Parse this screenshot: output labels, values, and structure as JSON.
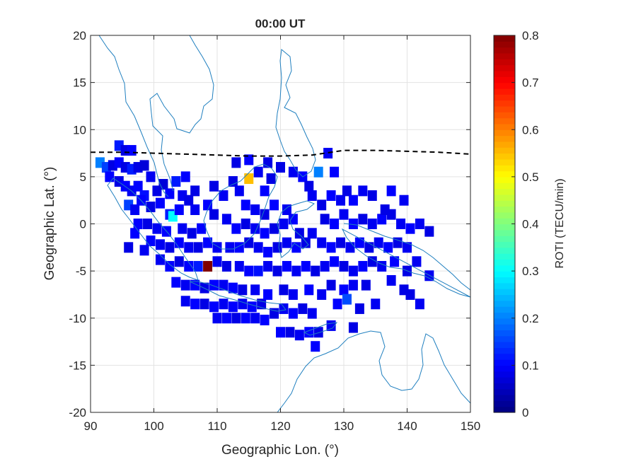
{
  "chart_data": {
    "type": "heatmap",
    "title": "00:00 UT",
    "xlabel": "Geographic Lon. (°)",
    "ylabel": "Geographic Lat. (°)",
    "xlim": [
      90,
      150
    ],
    "ylim": [
      -20,
      20
    ],
    "xticks": [
      90,
      100,
      110,
      120,
      130,
      140,
      150
    ],
    "yticks": [
      20,
      15,
      10,
      5,
      0,
      -5,
      -10,
      -15,
      -20
    ],
    "xtick_labels": [
      "90",
      "100",
      "110",
      "120",
      "130",
      "140",
      "150"
    ],
    "ytick_labels": [
      "20",
      "15",
      "10",
      "5",
      "0",
      "-5",
      "-10",
      "-15",
      "-20"
    ],
    "grid": true,
    "colorbar": {
      "label": "ROTI (TECU/min)",
      "range": [
        0,
        0.8
      ],
      "ticks": [
        0,
        0.1,
        0.2,
        0.3,
        0.4,
        0.5,
        0.6,
        0.7,
        0.8
      ],
      "tick_labels": [
        "0",
        "0.1",
        "0.2",
        "0.3",
        "0.4",
        "0.5",
        "0.6",
        "0.7",
        "0.8"
      ],
      "colormap": "jet"
    },
    "dip_equator": {
      "style": "dashed",
      "color": "#000000",
      "points": [
        [
          90,
          7.6
        ],
        [
          95,
          7.6
        ],
        [
          100,
          7.5
        ],
        [
          105,
          7.4
        ],
        [
          110,
          7.3
        ],
        [
          115,
          7.2
        ],
        [
          120,
          7.2
        ],
        [
          125,
          7.3
        ],
        [
          128,
          7.6
        ],
        [
          130,
          7.8
        ],
        [
          135,
          7.8
        ],
        [
          140,
          7.7
        ],
        [
          145,
          7.6
        ],
        [
          150,
          7.4
        ]
      ]
    },
    "coastline_color": "#1f7fbf",
    "cells": [
      {
        "lon": 94.5,
        "lat": 8.3,
        "roti": 0.12
      },
      {
        "lon": 95.5,
        "lat": 7.8,
        "roti": 0.08
      },
      {
        "lon": 96.5,
        "lat": 7.8,
        "roti": 0.1
      },
      {
        "lon": 91.5,
        "lat": 6.5,
        "roti": 0.2
      },
      {
        "lon": 92.5,
        "lat": 6.0,
        "roti": 0.15
      },
      {
        "lon": 93.5,
        "lat": 6.2,
        "roti": 0.08
      },
      {
        "lon": 94.5,
        "lat": 6.5,
        "roti": 0.1
      },
      {
        "lon": 95.5,
        "lat": 6.0,
        "roti": 0.08
      },
      {
        "lon": 96.5,
        "lat": 5.8,
        "roti": 0.12
      },
      {
        "lon": 97.5,
        "lat": 6.0,
        "roti": 0.08
      },
      {
        "lon": 98.5,
        "lat": 6.2,
        "roti": 0.07
      },
      {
        "lon": 99.5,
        "lat": 5.0,
        "roti": 0.09
      },
      {
        "lon": 93.0,
        "lat": 5.0,
        "roti": 0.1
      },
      {
        "lon": 94.5,
        "lat": 4.5,
        "roti": 0.08
      },
      {
        "lon": 95.5,
        "lat": 4.0,
        "roti": 0.1
      },
      {
        "lon": 96.5,
        "lat": 3.5,
        "roti": 0.09
      },
      {
        "lon": 97.5,
        "lat": 4.0,
        "roti": 0.1
      },
      {
        "lon": 98.5,
        "lat": 3.0,
        "roti": 0.11
      },
      {
        "lon": 100.5,
        "lat": 3.5,
        "roti": 0.08
      },
      {
        "lon": 101.5,
        "lat": 4.2,
        "roti": 0.07
      },
      {
        "lon": 102.5,
        "lat": 3.2,
        "roti": 0.1
      },
      {
        "lon": 103.5,
        "lat": 4.5,
        "roti": 0.12
      },
      {
        "lon": 104.5,
        "lat": 3.0,
        "roti": 0.09
      },
      {
        "lon": 96.0,
        "lat": 2.0,
        "roti": 0.15
      },
      {
        "lon": 97.0,
        "lat": 1.5,
        "roti": 0.09
      },
      {
        "lon": 98.0,
        "lat": 2.5,
        "roti": 0.1
      },
      {
        "lon": 99.5,
        "lat": 1.8,
        "roti": 0.08
      },
      {
        "lon": 101.0,
        "lat": 2.2,
        "roti": 0.1
      },
      {
        "lon": 102.5,
        "lat": 1.0,
        "roti": 0.12
      },
      {
        "lon": 103.0,
        "lat": 0.8,
        "roti": 0.3
      },
      {
        "lon": 104.0,
        "lat": 1.5,
        "roti": 0.1
      },
      {
        "lon": 105.5,
        "lat": 2.5,
        "roti": 0.08
      },
      {
        "lon": 106.5,
        "lat": 1.5,
        "roti": 0.09
      },
      {
        "lon": 108.5,
        "lat": 2.0,
        "roti": 0.1
      },
      {
        "lon": 109.5,
        "lat": 1.0,
        "roti": 0.08
      },
      {
        "lon": 97.5,
        "lat": 0.0,
        "roti": 0.1
      },
      {
        "lon": 99.0,
        "lat": 0.0,
        "roti": 0.08
      },
      {
        "lon": 100.5,
        "lat": -0.5,
        "roti": 0.09
      },
      {
        "lon": 102.0,
        "lat": -0.8,
        "roti": 0.1
      },
      {
        "lon": 104.5,
        "lat": -0.5,
        "roti": 0.09
      },
      {
        "lon": 106.0,
        "lat": -1.0,
        "roti": 0.08
      },
      {
        "lon": 107.5,
        "lat": -0.5,
        "roti": 0.1
      },
      {
        "lon": 99.5,
        "lat": -1.8,
        "roti": 0.1
      },
      {
        "lon": 101.0,
        "lat": -2.2,
        "roti": 0.09
      },
      {
        "lon": 102.5,
        "lat": -2.5,
        "roti": 0.08
      },
      {
        "lon": 104.0,
        "lat": -2.0,
        "roti": 0.1
      },
      {
        "lon": 105.5,
        "lat": -2.5,
        "roti": 0.09
      },
      {
        "lon": 107.0,
        "lat": -2.5,
        "roti": 0.08
      },
      {
        "lon": 108.5,
        "lat": -2.0,
        "roti": 0.1
      },
      {
        "lon": 110.0,
        "lat": -2.5,
        "roti": 0.09
      },
      {
        "lon": 101.0,
        "lat": -3.8,
        "roti": 0.09
      },
      {
        "lon": 102.5,
        "lat": -4.5,
        "roti": 0.1
      },
      {
        "lon": 104.0,
        "lat": -4.0,
        "roti": 0.08
      },
      {
        "lon": 105.5,
        "lat": -4.5,
        "roti": 0.1
      },
      {
        "lon": 107.0,
        "lat": -4.5,
        "roti": 0.12
      },
      {
        "lon": 108.5,
        "lat": -4.5,
        "roti": 0.8
      },
      {
        "lon": 110.0,
        "lat": -4.0,
        "roti": 0.09
      },
      {
        "lon": 111.5,
        "lat": -4.5,
        "roti": 0.08
      },
      {
        "lon": 103.5,
        "lat": -6.2,
        "roti": 0.1
      },
      {
        "lon": 105.0,
        "lat": -6.5,
        "roti": 0.09
      },
      {
        "lon": 106.5,
        "lat": -6.5,
        "roti": 0.1
      },
      {
        "lon": 108.0,
        "lat": -6.8,
        "roti": 0.08
      },
      {
        "lon": 109.5,
        "lat": -6.5,
        "roti": 0.1
      },
      {
        "lon": 111.0,
        "lat": -6.5,
        "roti": 0.09
      },
      {
        "lon": 112.5,
        "lat": -6.8,
        "roti": 0.1
      },
      {
        "lon": 114.0,
        "lat": -7.0,
        "roti": 0.08
      },
      {
        "lon": 105.0,
        "lat": -8.2,
        "roti": 0.09
      },
      {
        "lon": 106.5,
        "lat": -8.5,
        "roti": 0.1
      },
      {
        "lon": 108.0,
        "lat": -8.5,
        "roti": 0.08
      },
      {
        "lon": 109.5,
        "lat": -8.8,
        "roti": 0.1
      },
      {
        "lon": 111.0,
        "lat": -8.5,
        "roti": 0.09
      },
      {
        "lon": 112.5,
        "lat": -8.8,
        "roti": 0.1
      },
      {
        "lon": 114.0,
        "lat": -8.5,
        "roti": 0.09
      },
      {
        "lon": 115.5,
        "lat": -8.8,
        "roti": 0.1
      },
      {
        "lon": 117.0,
        "lat": -8.5,
        "roti": 0.08
      },
      {
        "lon": 110.0,
        "lat": -10.0,
        "roti": 0.09
      },
      {
        "lon": 111.5,
        "lat": -10.0,
        "roti": 0.1
      },
      {
        "lon": 113.0,
        "lat": -10.0,
        "roti": 0.08
      },
      {
        "lon": 114.5,
        "lat": -10.0,
        "roti": 0.1
      },
      {
        "lon": 116.0,
        "lat": -10.0,
        "roti": 0.09
      },
      {
        "lon": 117.5,
        "lat": -10.2,
        "roti": 0.1
      },
      {
        "lon": 119.0,
        "lat": -9.5,
        "roti": 0.08
      },
      {
        "lon": 120.5,
        "lat": -9.0,
        "roti": 0.09
      },
      {
        "lon": 122.0,
        "lat": -9.5,
        "roti": 0.1
      },
      {
        "lon": 123.5,
        "lat": -9.0,
        "roti": 0.08
      },
      {
        "lon": 125.0,
        "lat": -9.5,
        "roti": 0.09
      },
      {
        "lon": 120.0,
        "lat": -11.5,
        "roti": 0.1
      },
      {
        "lon": 121.5,
        "lat": -11.5,
        "roti": 0.08
      },
      {
        "lon": 123.0,
        "lat": -11.8,
        "roti": 0.09
      },
      {
        "lon": 124.5,
        "lat": -11.5,
        "roti": 0.1
      },
      {
        "lon": 126.0,
        "lat": -11.5,
        "roti": 0.08
      },
      {
        "lon": 125.5,
        "lat": -13.0,
        "roti": 0.1
      },
      {
        "lon": 128.0,
        "lat": -10.8,
        "roti": 0.09
      },
      {
        "lon": 131.5,
        "lat": -11.0,
        "roti": 0.08
      },
      {
        "lon": 113.0,
        "lat": 6.5,
        "roti": 0.08
      },
      {
        "lon": 115.0,
        "lat": 6.8,
        "roti": 0.1
      },
      {
        "lon": 115.0,
        "lat": 4.8,
        "roti": 0.55
      },
      {
        "lon": 116.5,
        "lat": 5.5,
        "roti": 0.09
      },
      {
        "lon": 112.5,
        "lat": 4.5,
        "roti": 0.08
      },
      {
        "lon": 113.5,
        "lat": 3.5,
        "roti": 0.09
      },
      {
        "lon": 117.5,
        "lat": 3.5,
        "roti": 0.1
      },
      {
        "lon": 118.5,
        "lat": 4.8,
        "roti": 0.08
      },
      {
        "lon": 114.5,
        "lat": 2.0,
        "roti": 0.1
      },
      {
        "lon": 116.0,
        "lat": 1.5,
        "roti": 0.09
      },
      {
        "lon": 117.5,
        "lat": 1.0,
        "roti": 0.08
      },
      {
        "lon": 119.0,
        "lat": 2.0,
        "roti": 0.1
      },
      {
        "lon": 111.5,
        "lat": 0.5,
        "roti": 0.09
      },
      {
        "lon": 113.0,
        "lat": -0.5,
        "roti": 0.1
      },
      {
        "lon": 114.5,
        "lat": 0.0,
        "roti": 0.08
      },
      {
        "lon": 116.0,
        "lat": -0.5,
        "roti": 0.09
      },
      {
        "lon": 117.5,
        "lat": -1.0,
        "roti": 0.1
      },
      {
        "lon": 119.0,
        "lat": -0.5,
        "roti": 0.08
      },
      {
        "lon": 120.5,
        "lat": 0.0,
        "roti": 0.09
      },
      {
        "lon": 122.0,
        "lat": 0.5,
        "roti": 0.1
      },
      {
        "lon": 112.0,
        "lat": -2.5,
        "roti": 0.09
      },
      {
        "lon": 113.5,
        "lat": -2.5,
        "roti": 0.1
      },
      {
        "lon": 115.0,
        "lat": -2.0,
        "roti": 0.08
      },
      {
        "lon": 116.5,
        "lat": -2.5,
        "roti": 0.09
      },
      {
        "lon": 118.0,
        "lat": -3.0,
        "roti": 0.1
      },
      {
        "lon": 119.5,
        "lat": -2.5,
        "roti": 0.08
      },
      {
        "lon": 121.0,
        "lat": -2.0,
        "roti": 0.09
      },
      {
        "lon": 122.5,
        "lat": -2.5,
        "roti": 0.1
      },
      {
        "lon": 124.0,
        "lat": -2.0,
        "roti": 0.08
      },
      {
        "lon": 113.5,
        "lat": -4.5,
        "roti": 0.09
      },
      {
        "lon": 115.0,
        "lat": -5.0,
        "roti": 0.1
      },
      {
        "lon": 116.5,
        "lat": -5.0,
        "roti": 0.11
      },
      {
        "lon": 118.0,
        "lat": -4.5,
        "roti": 0.09
      },
      {
        "lon": 119.5,
        "lat": -5.0,
        "roti": 0.08
      },
      {
        "lon": 121.0,
        "lat": -4.5,
        "roti": 0.1
      },
      {
        "lon": 122.5,
        "lat": -5.0,
        "roti": 0.09
      },
      {
        "lon": 124.0,
        "lat": -4.5,
        "roti": 0.1
      },
      {
        "lon": 125.5,
        "lat": -5.0,
        "roti": 0.08
      },
      {
        "lon": 116.0,
        "lat": -7.0,
        "roti": 0.09
      },
      {
        "lon": 118.0,
        "lat": -7.5,
        "roti": 0.1
      },
      {
        "lon": 120.5,
        "lat": -7.0,
        "roti": 0.08
      },
      {
        "lon": 122.0,
        "lat": -7.5,
        "roti": 0.09
      },
      {
        "lon": 124.5,
        "lat": -7.0,
        "roti": 0.1
      },
      {
        "lon": 126.5,
        "lat": -7.5,
        "roti": 0.09
      },
      {
        "lon": 120.0,
        "lat": 6.0,
        "roti": 0.08
      },
      {
        "lon": 122.0,
        "lat": 5.5,
        "roti": 0.09
      },
      {
        "lon": 123.5,
        "lat": 5.0,
        "roti": 0.1
      },
      {
        "lon": 124.5,
        "lat": 4.0,
        "roti": 0.08
      },
      {
        "lon": 126.0,
        "lat": 5.5,
        "roti": 0.2
      },
      {
        "lon": 127.5,
        "lat": 7.5,
        "roti": 0.09
      },
      {
        "lon": 128.5,
        "lat": 5.5,
        "roti": 0.1
      },
      {
        "lon": 125.0,
        "lat": 3.0,
        "roti": 0.09
      },
      {
        "lon": 126.5,
        "lat": 2.0,
        "roti": 0.08
      },
      {
        "lon": 128.0,
        "lat": 3.0,
        "roti": 0.1
      },
      {
        "lon": 129.5,
        "lat": 2.5,
        "roti": 0.09
      },
      {
        "lon": 130.5,
        "lat": 3.5,
        "roti": 0.08
      },
      {
        "lon": 131.5,
        "lat": 2.5,
        "roti": 0.1
      },
      {
        "lon": 133.0,
        "lat": 3.5,
        "roti": 0.09
      },
      {
        "lon": 134.5,
        "lat": 3.0,
        "roti": 0.08
      },
      {
        "lon": 137.5,
        "lat": 3.5,
        "roti": 0.1
      },
      {
        "lon": 139.5,
        "lat": 2.5,
        "roti": 0.09
      },
      {
        "lon": 127.0,
        "lat": 0.5,
        "roti": 0.08
      },
      {
        "lon": 128.5,
        "lat": 0.0,
        "roti": 0.1
      },
      {
        "lon": 130.0,
        "lat": 1.0,
        "roti": 0.09
      },
      {
        "lon": 131.5,
        "lat": 0.0,
        "roti": 0.1
      },
      {
        "lon": 133.0,
        "lat": 0.5,
        "roti": 0.08
      },
      {
        "lon": 134.5,
        "lat": 0.0,
        "roti": 0.09
      },
      {
        "lon": 136.0,
        "lat": 0.5,
        "roti": 0.1
      },
      {
        "lon": 137.5,
        "lat": 1.0,
        "roti": 0.08
      },
      {
        "lon": 139.0,
        "lat": 0.0,
        "roti": 0.09
      },
      {
        "lon": 140.5,
        "lat": -0.5,
        "roti": 0.1
      },
      {
        "lon": 142.0,
        "lat": 0.0,
        "roti": 0.09
      },
      {
        "lon": 143.5,
        "lat": -0.8,
        "roti": 0.08
      },
      {
        "lon": 126.5,
        "lat": -2.0,
        "roti": 0.09
      },
      {
        "lon": 128.0,
        "lat": -2.5,
        "roti": 0.1
      },
      {
        "lon": 129.5,
        "lat": -2.0,
        "roti": 0.08
      },
      {
        "lon": 131.0,
        "lat": -2.5,
        "roti": 0.09
      },
      {
        "lon": 132.5,
        "lat": -2.0,
        "roti": 0.1
      },
      {
        "lon": 134.0,
        "lat": -2.5,
        "roti": 0.08
      },
      {
        "lon": 135.5,
        "lat": -2.0,
        "roti": 0.09
      },
      {
        "lon": 137.0,
        "lat": -2.5,
        "roti": 0.1
      },
      {
        "lon": 138.5,
        "lat": -2.0,
        "roti": 0.08
      },
      {
        "lon": 140.0,
        "lat": -2.5,
        "roti": 0.09
      },
      {
        "lon": 127.0,
        "lat": -4.5,
        "roti": 0.09
      },
      {
        "lon": 128.5,
        "lat": -4.0,
        "roti": 0.1
      },
      {
        "lon": 130.0,
        "lat": -4.5,
        "roti": 0.08
      },
      {
        "lon": 131.5,
        "lat": -5.0,
        "roti": 0.09
      },
      {
        "lon": 133.0,
        "lat": -4.5,
        "roti": 0.1
      },
      {
        "lon": 134.5,
        "lat": -4.0,
        "roti": 0.08
      },
      {
        "lon": 136.0,
        "lat": -4.5,
        "roti": 0.09
      },
      {
        "lon": 138.0,
        "lat": -4.0,
        "roti": 0.1
      },
      {
        "lon": 140.0,
        "lat": -5.0,
        "roti": 0.08
      },
      {
        "lon": 141.5,
        "lat": -4.0,
        "roti": 0.09
      },
      {
        "lon": 128.0,
        "lat": -6.5,
        "roti": 0.08
      },
      {
        "lon": 130.0,
        "lat": -7.0,
        "roti": 0.1
      },
      {
        "lon": 131.5,
        "lat": -6.5,
        "roti": 0.09
      },
      {
        "lon": 133.5,
        "lat": -6.5,
        "roti": 0.08
      },
      {
        "lon": 137.5,
        "lat": -6.0,
        "roti": 0.09
      },
      {
        "lon": 139.5,
        "lat": -7.0,
        "roti": 0.08
      },
      {
        "lon": 143.5,
        "lat": -5.5,
        "roti": 0.09
      },
      {
        "lon": 129.0,
        "lat": -8.5,
        "roti": 0.1
      },
      {
        "lon": 130.5,
        "lat": -8.0,
        "roti": 0.16
      },
      {
        "lon": 132.5,
        "lat": -9.0,
        "roti": 0.08
      },
      {
        "lon": 135.0,
        "lat": -8.5,
        "roti": 0.09
      },
      {
        "lon": 140.5,
        "lat": -7.5,
        "roti": 0.08
      },
      {
        "lon": 142.0,
        "lat": -8.5,
        "roti": 0.09
      },
      {
        "lon": 136.5,
        "lat": 1.5,
        "roti": 0.08
      },
      {
        "lon": 105.0,
        "lat": 5.0,
        "roti": 0.1
      },
      {
        "lon": 106.5,
        "lat": 3.5,
        "roti": 0.08
      },
      {
        "lon": 98.5,
        "lat": -2.8,
        "roti": 0.09
      },
      {
        "lon": 97.0,
        "lat": -1.0,
        "roti": 0.1
      },
      {
        "lon": 96.0,
        "lat": -2.5,
        "roti": 0.08
      },
      {
        "lon": 111.0,
        "lat": 3.0,
        "roti": 0.09
      },
      {
        "lon": 109.5,
        "lat": 4.0,
        "roti": 0.08
      },
      {
        "lon": 121.0,
        "lat": 1.5,
        "roti": 0.09
      },
      {
        "lon": 123.0,
        "lat": -1.0,
        "roti": 0.08
      },
      {
        "lon": 125.0,
        "lat": -1.0,
        "roti": 0.09
      },
      {
        "lon": 118.0,
        "lat": 6.5,
        "roti": 0.08
      }
    ]
  }
}
